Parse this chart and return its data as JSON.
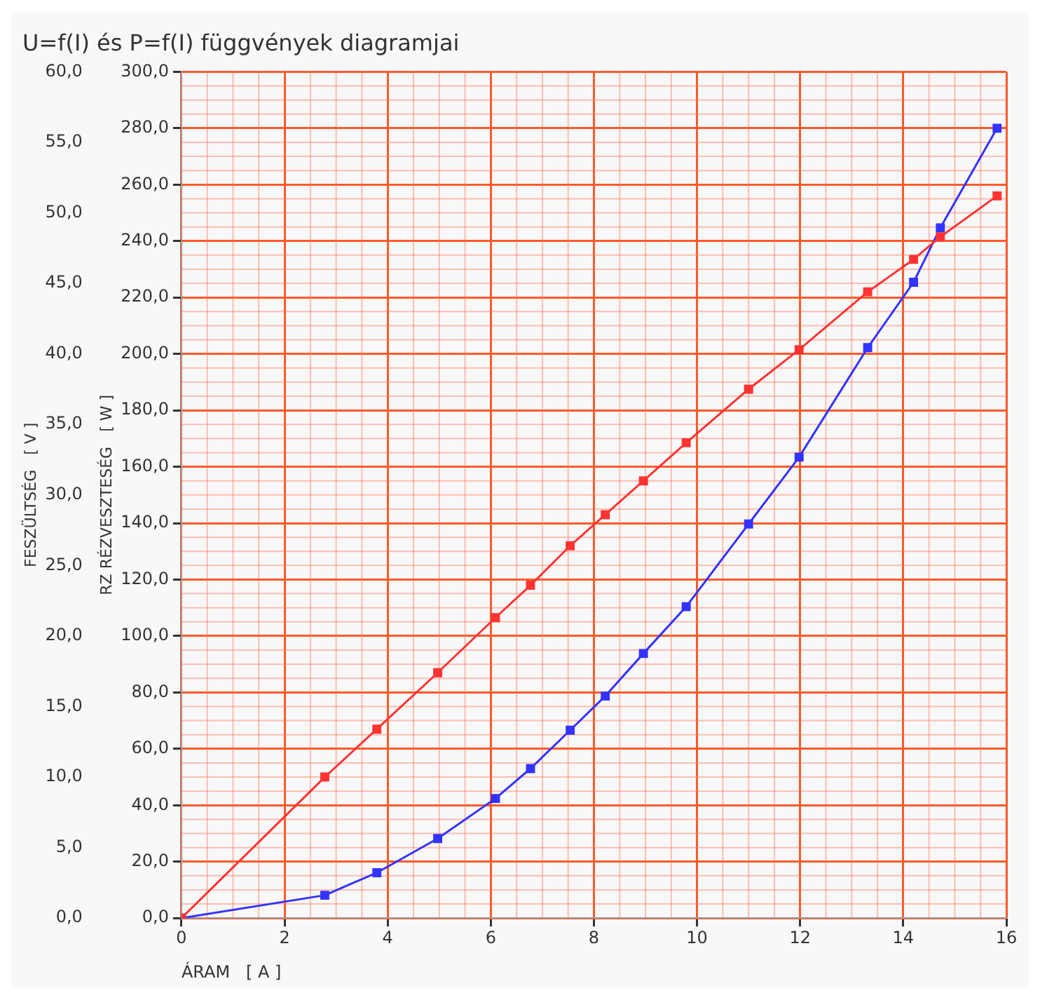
{
  "chart_data": {
    "type": "line",
    "title": "U=f(I) és P=f(I) függvények diagramjai",
    "xlabel": "ÁRAM   [ A ]",
    "ylabel": "RZ RÉZVESZTESÉG   [ W ]",
    "y2label": "FESZÜLTSÉG   [ V ]",
    "x": [
      0,
      2.78,
      3.79,
      4.97,
      6.09,
      6.77,
      7.54,
      8.22,
      8.96,
      9.79,
      11.0,
      11.98,
      13.31,
      14.2,
      14.72,
      15.82
    ],
    "series": [
      {
        "color": "#ff3333",
        "axis": "y2",
        "values": [
          0,
          10.0,
          13.4,
          17.4,
          21.3,
          23.6,
          26.4,
          28.6,
          31.0,
          33.7,
          37.5,
          40.3,
          44.4,
          46.7,
          48.3,
          51.2
        ]
      },
      {
        "color": "#3333ff",
        "values": [
          0,
          8.1,
          16.1,
          28.2,
          42.4,
          53,
          66.6,
          78.7,
          93.8,
          110.4,
          139.7,
          163.4,
          202.2,
          225.4,
          244.7,
          280
        ]
      }
    ],
    "xlim": [
      0,
      16
    ],
    "xticks": [
      0,
      2,
      4,
      6,
      8,
      10,
      12,
      14,
      16
    ],
    "ylim": [
      0,
      300
    ],
    "yticks": [
      {
        "value": 0,
        "label": "0,0"
      },
      {
        "value": 20,
        "label": "20,0"
      },
      {
        "value": 40,
        "label": "40,0"
      },
      {
        "value": 60,
        "label": "60,0"
      },
      {
        "value": 80,
        "label": "80,0"
      },
      {
        "value": 100,
        "label": "100,0"
      },
      {
        "value": 120,
        "label": "120,0"
      },
      {
        "value": 140,
        "label": "140,0"
      },
      {
        "value": 160,
        "label": "160,0"
      },
      {
        "value": 180,
        "label": "180,0"
      },
      {
        "value": 200,
        "label": "200,0"
      },
      {
        "value": 220,
        "label": "220,0"
      },
      {
        "value": 240,
        "label": "240,0"
      },
      {
        "value": 260,
        "label": "260,0"
      },
      {
        "value": 280,
        "label": "280,0"
      },
      {
        "value": 300,
        "label": "300,0"
      }
    ],
    "y2lim": [
      0,
      60
    ],
    "y2ticks": [
      {
        "value": 0,
        "label": "0,0"
      },
      {
        "value": 5,
        "label": "5,0"
      },
      {
        "value": 10,
        "label": "10,0"
      },
      {
        "value": 15,
        "label": "15,0"
      },
      {
        "value": 20,
        "label": "20,0"
      },
      {
        "value": 25,
        "label": "25,0"
      },
      {
        "value": 30,
        "label": "30,0"
      },
      {
        "value": 35,
        "label": "35,0"
      },
      {
        "value": 40,
        "label": "40,0"
      },
      {
        "value": 45,
        "label": "45,0"
      },
      {
        "value": 50,
        "label": "50,0"
      },
      {
        "value": 55,
        "label": "55,0"
      },
      {
        "value": 60,
        "label": "60,0"
      }
    ],
    "grid": true,
    "legend": false,
    "marker": "square",
    "line_style": "solid"
  }
}
